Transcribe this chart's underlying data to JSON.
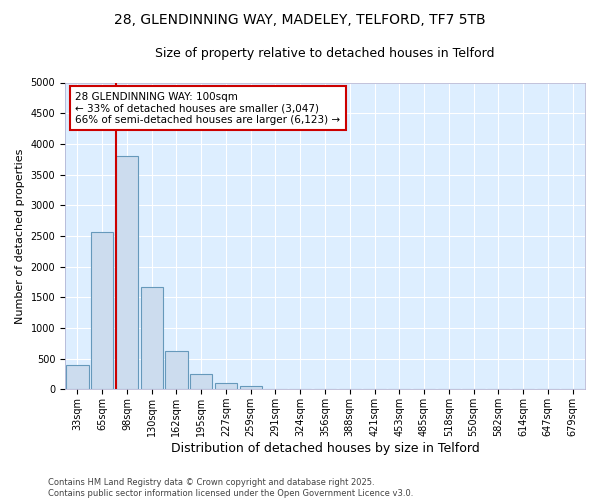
{
  "title_line1": "28, GLENDINNING WAY, MADELEY, TELFORD, TF7 5TB",
  "title_line2": "Size of property relative to detached houses in Telford",
  "xlabel": "Distribution of detached houses by size in Telford",
  "ylabel": "Number of detached properties",
  "categories": [
    "33sqm",
    "65sqm",
    "98sqm",
    "130sqm",
    "162sqm",
    "195sqm",
    "227sqm",
    "259sqm",
    "291sqm",
    "324sqm",
    "356sqm",
    "388sqm",
    "421sqm",
    "453sqm",
    "485sqm",
    "518sqm",
    "550sqm",
    "582sqm",
    "614sqm",
    "647sqm",
    "679sqm"
  ],
  "values": [
    390,
    2560,
    3800,
    1660,
    620,
    250,
    105,
    55,
    0,
    0,
    0,
    0,
    0,
    0,
    0,
    0,
    0,
    0,
    0,
    0,
    0
  ],
  "bar_color": "#ccdcee",
  "bar_edge_color": "#6699bb",
  "red_line_index": 2,
  "red_line_color": "#cc0000",
  "annotation_text": "28 GLENDINNING WAY: 100sqm\n← 33% of detached houses are smaller (3,047)\n66% of semi-detached houses are larger (6,123) →",
  "annotation_box_color": "#ffffff",
  "annotation_edge_color": "#cc0000",
  "ylim": [
    0,
    5000
  ],
  "yticks": [
    0,
    500,
    1000,
    1500,
    2000,
    2500,
    3000,
    3500,
    4000,
    4500,
    5000
  ],
  "fig_bg_color": "#ffffff",
  "plot_bg_color": "#ddeeff",
  "footer_line1": "Contains HM Land Registry data © Crown copyright and database right 2025.",
  "footer_line2": "Contains public sector information licensed under the Open Government Licence v3.0.",
  "title_fontsize": 10,
  "subtitle_fontsize": 9,
  "tick_fontsize": 7,
  "ylabel_fontsize": 8,
  "xlabel_fontsize": 9,
  "annotation_fontsize": 7.5,
  "footer_fontsize": 6
}
